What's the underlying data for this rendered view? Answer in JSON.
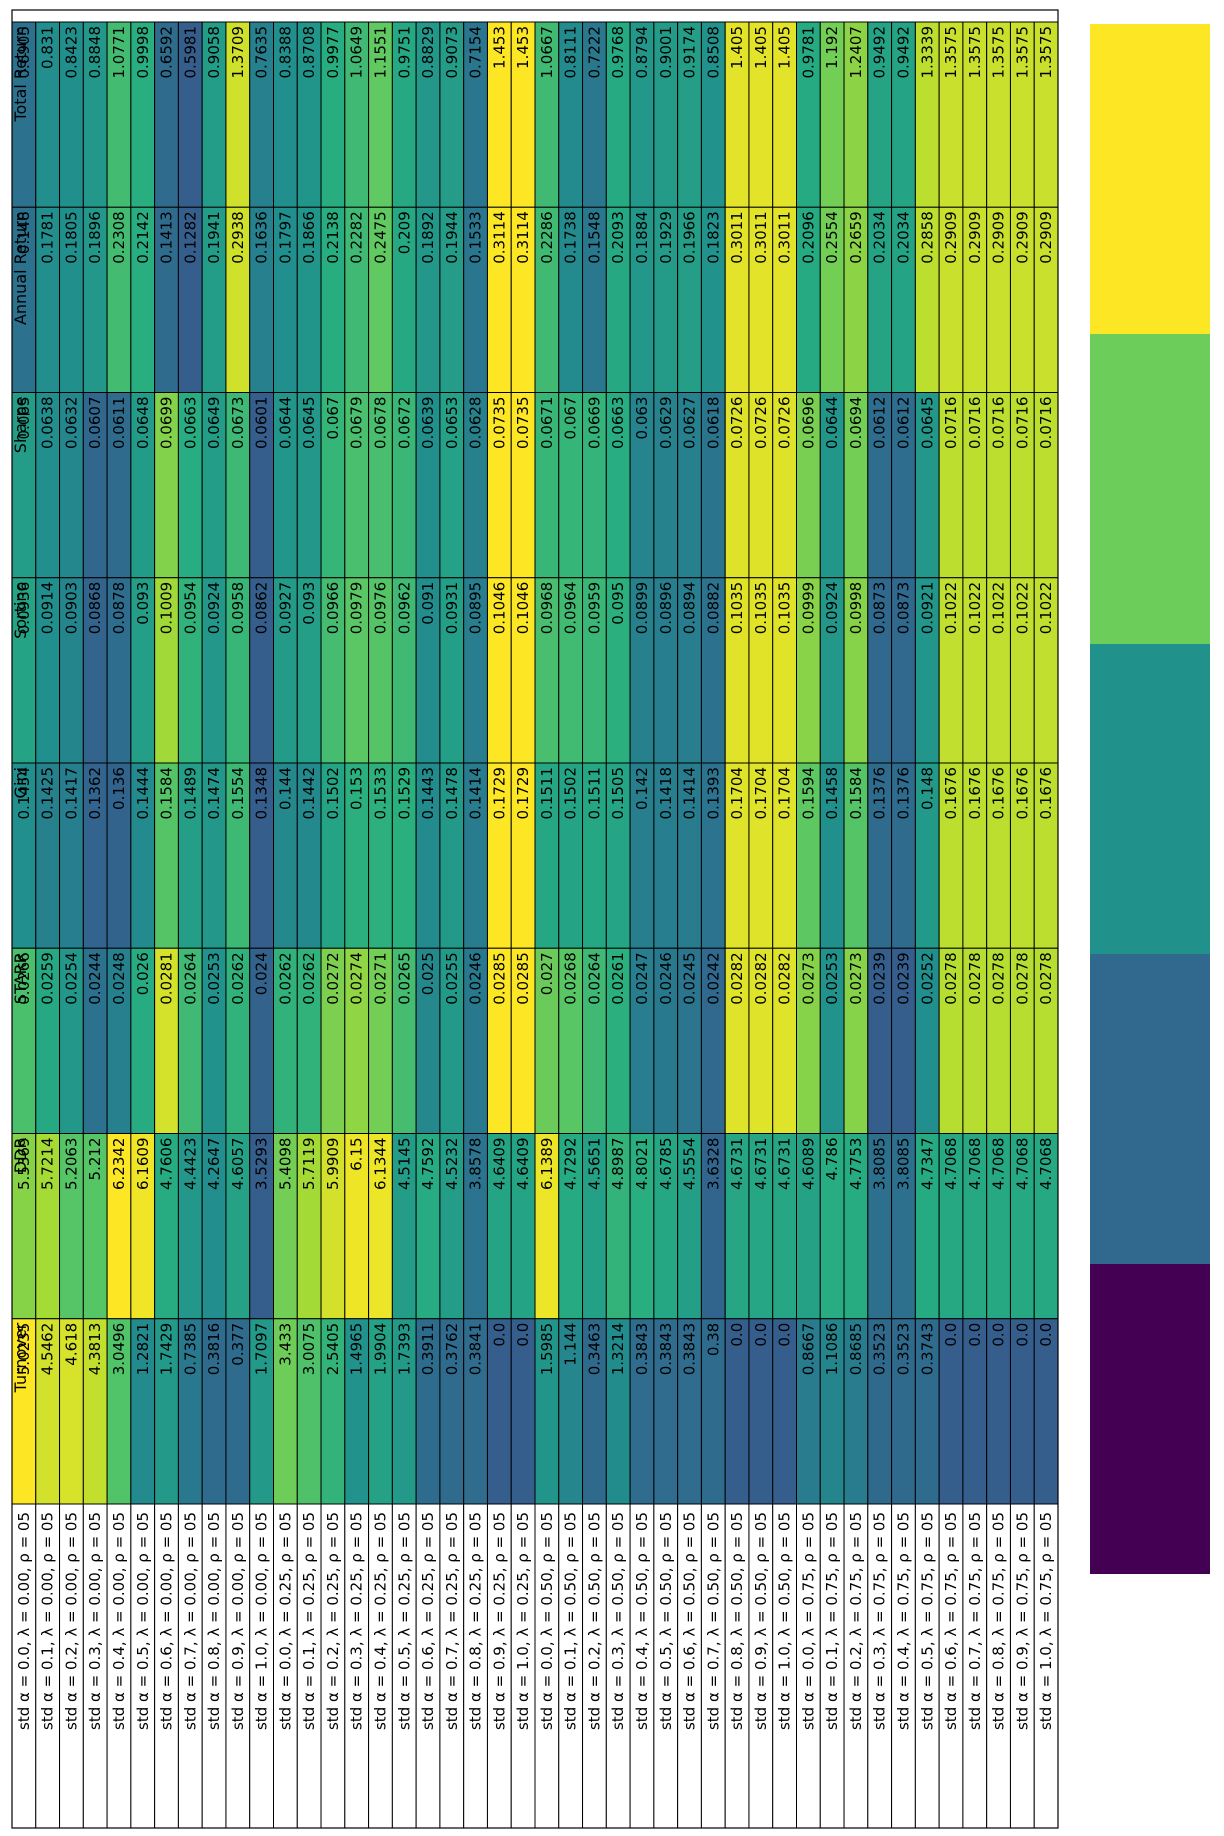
{
  "chart_data": {
    "type": "heatmap",
    "row_labels": [
      "std α = 0.0, λ = 0.00, ρ = 05",
      "std α = 0.1, λ = 0.00, ρ = 05",
      "std α = 0.2, λ = 0.00, ρ = 05",
      "std α = 0.3, λ = 0.00, ρ = 05",
      "std α = 0.4, λ = 0.00, ρ = 05",
      "std α = 0.5, λ = 0.00, ρ = 05",
      "std α = 0.6, λ = 0.00, ρ = 05",
      "std α = 0.7, λ = 0.00, ρ = 05",
      "std α = 0.8, λ = 0.00, ρ = 05",
      "std α = 0.9, λ = 0.00, ρ = 05",
      "std α = 1.0, λ = 0.00, ρ = 05",
      "std α = 0.0, λ = 0.25, ρ = 05",
      "std α = 0.1, λ = 0.25, ρ = 05",
      "std α = 0.2, λ = 0.25, ρ = 05",
      "std α = 0.3, λ = 0.25, ρ = 05",
      "std α = 0.4, λ = 0.25, ρ = 05",
      "std α = 0.5, λ = 0.25, ρ = 05",
      "std α = 0.6, λ = 0.25, ρ = 05",
      "std α = 0.7, λ = 0.25, ρ = 05",
      "std α = 0.8, λ = 0.25, ρ = 05",
      "std α = 0.9, λ = 0.25, ρ = 05",
      "std α = 1.0, λ = 0.25, ρ = 05",
      "std α = 0.0, λ = 0.50, ρ = 05",
      "std α = 0.1, λ = 0.50, ρ = 05",
      "std α = 0.2, λ = 0.50, ρ = 05",
      "std α = 0.3, λ = 0.50, ρ = 05",
      "std α = 0.4, λ = 0.50, ρ = 05",
      "std α = 0.5, λ = 0.50, ρ = 05",
      "std α = 0.6, λ = 0.50, ρ = 05",
      "std α = 0.7, λ = 0.50, ρ = 05",
      "std α = 0.8, λ = 0.50, ρ = 05",
      "std α = 0.9, λ = 0.50, ρ = 05",
      "std α = 1.0, λ = 0.50, ρ = 05",
      "std α = 0.0, λ = 0.75, ρ = 05",
      "std α = 0.1, λ = 0.75, ρ = 05",
      "std α = 0.2, λ = 0.75, ρ = 05",
      "std α = 0.3, λ = 0.75, ρ = 05",
      "std α = 0.4, λ = 0.75, ρ = 05",
      "std α = 0.5, λ = 0.75, ρ = 05",
      "std α = 0.6, λ = 0.75, ρ = 05",
      "std α = 0.7, λ = 0.75, ρ = 05",
      "std α = 0.8, λ = 0.75, ρ = 05",
      "std α = 0.9, λ = 0.75, ρ = 05",
      "std α = 1.0, λ = 0.75, ρ = 05"
    ],
    "columns": [
      "Total Return",
      "Annual Return",
      "Sharpe",
      "Sortino",
      "Gini",
      "STARR",
      "DDR",
      "Turnover"
    ],
    "values": [
      [
        "0.6905",
        "0.148",
        "0.065",
        "0.0936",
        "0.1454",
        "0.0266",
        "5.5369",
        "5.0235"
      ],
      [
        "0.831",
        "0.1781",
        "0.0638",
        "0.0914",
        "0.1425",
        "0.0259",
        "5.7214",
        "4.5462"
      ],
      [
        "0.8423",
        "0.1805",
        "0.0632",
        "0.0903",
        "0.1417",
        "0.0254",
        "5.2063",
        "4.618"
      ],
      [
        "0.8848",
        "0.1896",
        "0.0607",
        "0.0868",
        "0.1362",
        "0.0244",
        "5.212",
        "4.3813"
      ],
      [
        "1.0771",
        "0.2308",
        "0.0611",
        "0.0878",
        "0.136",
        "0.0248",
        "6.2342",
        "3.0496"
      ],
      [
        "0.9998",
        "0.2142",
        "0.0648",
        "0.093",
        "0.1444",
        "0.026",
        "6.1609",
        "1.2821"
      ],
      [
        "0.6592",
        "0.1413",
        "0.0699",
        "0.1009",
        "0.1584",
        "0.0281",
        "4.7606",
        "1.7429"
      ],
      [
        "0.5981",
        "0.1282",
        "0.0663",
        "0.0954",
        "0.1489",
        "0.0264",
        "4.4423",
        "0.7385"
      ],
      [
        "0.9058",
        "0.1941",
        "0.0649",
        "0.0924",
        "0.1474",
        "0.0253",
        "4.2647",
        "0.3816"
      ],
      [
        "1.3709",
        "0.2938",
        "0.0673",
        "0.0958",
        "0.1554",
        "0.0262",
        "4.6057",
        "0.377"
      ],
      [
        "0.7635",
        "0.1636",
        "0.0601",
        "0.0862",
        "0.1348",
        "0.024",
        "3.5293",
        "1.7097"
      ],
      [
        "0.8388",
        "0.1797",
        "0.0644",
        "0.0927",
        "0.144",
        "0.0262",
        "5.4098",
        "3.433"
      ],
      [
        "0.8708",
        "0.1866",
        "0.0645",
        "0.093",
        "0.1442",
        "0.0262",
        "5.7119",
        "3.0075"
      ],
      [
        "0.9977",
        "0.2138",
        "0.067",
        "0.0966",
        "0.1502",
        "0.0272",
        "5.9909",
        "2.5405"
      ],
      [
        "1.0649",
        "0.2282",
        "0.0679",
        "0.0979",
        "0.153",
        "0.0274",
        "6.15",
        "1.4965"
      ],
      [
        "1.1551",
        "0.2475",
        "0.0678",
        "0.0976",
        "0.1533",
        "0.0271",
        "6.1344",
        "1.9904"
      ],
      [
        "0.9751",
        "0.209",
        "0.0672",
        "0.0962",
        "0.1529",
        "0.0265",
        "4.5145",
        "1.7393"
      ],
      [
        "0.8829",
        "0.1892",
        "0.0639",
        "0.091",
        "0.1443",
        "0.025",
        "4.7592",
        "0.3911"
      ],
      [
        "0.9073",
        "0.1944",
        "0.0653",
        "0.0931",
        "0.1478",
        "0.0255",
        "4.5232",
        "0.3762"
      ],
      [
        "0.7154",
        "0.1533",
        "0.0628",
        "0.0895",
        "0.1414",
        "0.0246",
        "3.8578",
        "0.3841"
      ],
      [
        "1.453",
        "0.3114",
        "0.0735",
        "0.1046",
        "0.1729",
        "0.0285",
        "4.6409",
        "0.0"
      ],
      [
        "1.453",
        "0.3114",
        "0.0735",
        "0.1046",
        "0.1729",
        "0.0285",
        "4.6409",
        "0.0"
      ],
      [
        "1.0667",
        "0.2286",
        "0.0671",
        "0.0968",
        "0.1511",
        "0.027",
        "6.1389",
        "1.5985"
      ],
      [
        "0.8111",
        "0.1738",
        "0.067",
        "0.0964",
        "0.1502",
        "0.0268",
        "4.7292",
        "1.144"
      ],
      [
        "0.7222",
        "0.1548",
        "0.0669",
        "0.0959",
        "0.1511",
        "0.0264",
        "4.5651",
        "0.3463"
      ],
      [
        "0.9768",
        "0.2093",
        "0.0663",
        "0.095",
        "0.1505",
        "0.0261",
        "4.8987",
        "1.3214"
      ],
      [
        "0.8794",
        "0.1884",
        "0.063",
        "0.0899",
        "0.142",
        "0.0247",
        "4.8021",
        "0.3843"
      ],
      [
        "0.9001",
        "0.1929",
        "0.0629",
        "0.0896",
        "0.1418",
        "0.0246",
        "4.6785",
        "0.3843"
      ],
      [
        "0.9174",
        "0.1966",
        "0.0627",
        "0.0894",
        "0.1414",
        "0.0245",
        "4.5554",
        "0.3843"
      ],
      [
        "0.8508",
        "0.1823",
        "0.0618",
        "0.0882",
        "0.1393",
        "0.0242",
        "3.6328",
        "0.38"
      ],
      [
        "1.405",
        "0.3011",
        "0.0726",
        "0.1035",
        "0.1704",
        "0.0282",
        "4.6731",
        "0.0"
      ],
      [
        "1.405",
        "0.3011",
        "0.0726",
        "0.1035",
        "0.1704",
        "0.0282",
        "4.6731",
        "0.0"
      ],
      [
        "1.405",
        "0.3011",
        "0.0726",
        "0.1035",
        "0.1704",
        "0.0282",
        "4.6731",
        "0.0"
      ],
      [
        "0.9781",
        "0.2096",
        "0.0696",
        "0.0999",
        "0.1594",
        "0.0273",
        "4.6089",
        "0.8667"
      ],
      [
        "1.192",
        "0.2554",
        "0.0644",
        "0.0924",
        "0.1458",
        "0.0253",
        "4.786",
        "1.1086"
      ],
      [
        "1.2407",
        "0.2659",
        "0.0694",
        "0.0998",
        "0.1584",
        "0.0273",
        "4.7753",
        "0.8685"
      ],
      [
        "0.9492",
        "0.2034",
        "0.0612",
        "0.0873",
        "0.1376",
        "0.0239",
        "3.8085",
        "0.3523"
      ],
      [
        "0.9492",
        "0.2034",
        "0.0612",
        "0.0873",
        "0.1376",
        "0.0239",
        "3.8085",
        "0.3523"
      ],
      [
        "1.3339",
        "0.2858",
        "0.0645",
        "0.0921",
        "0.148",
        "0.0252",
        "4.7347",
        "0.3743"
      ],
      [
        "1.3575",
        "0.2909",
        "0.0716",
        "0.1022",
        "0.1676",
        "0.0278",
        "4.7068",
        "0.0"
      ],
      [
        "1.3575",
        "0.2909",
        "0.0716",
        "0.1022",
        "0.1676",
        "0.0278",
        "4.7068",
        "0.0"
      ],
      [
        "1.3575",
        "0.2909",
        "0.0716",
        "0.1022",
        "0.1676",
        "0.0278",
        "4.7068",
        "0.0"
      ],
      [
        "1.3575",
        "0.2909",
        "0.0716",
        "0.1022",
        "0.1676",
        "0.0278",
        "4.7068",
        "0.0"
      ],
      [
        "1.3575",
        "0.2909",
        "0.0716",
        "0.1022",
        "0.1676",
        "0.0278",
        "4.7068",
        "0.0"
      ]
    ],
    "orientation": "rotated 90° counter-clockwise (columns read top-to-bottom along page width)",
    "colormap": [
      "#440154",
      "#31688e",
      "#21918c",
      "#6ccd5a",
      "#fde725"
    ],
    "colorbar": "right side, 5 discrete bins, no tick labels",
    "grid": true
  }
}
